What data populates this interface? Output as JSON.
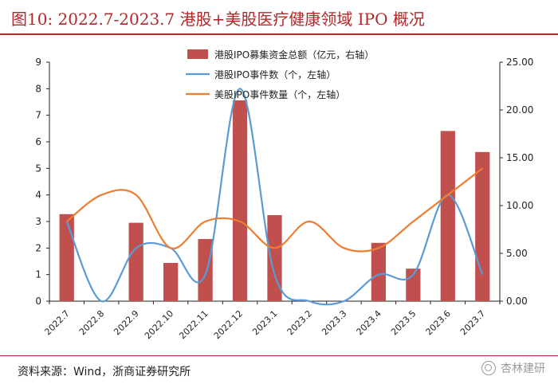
{
  "header": {
    "title": "图10:   2022.7-2023.7 港股+美股医疗健康领域 IPO 概况"
  },
  "footer": {
    "source": "资料来源：Wind，浙商证券研究所",
    "watermark": "杏林建研"
  },
  "colors": {
    "title": "#b0282a",
    "bar": "#c0504d",
    "hk_line": "#5b9bd5",
    "us_line": "#ed7d31"
  },
  "chart_data": {
    "type": "bar",
    "categories": [
      "2022.7",
      "2022.8",
      "2022.9",
      "2022.10",
      "2022.11",
      "2022.12",
      "2023.1",
      "2023.2",
      "2023.3",
      "2023.4",
      "2023.5",
      "2023.6",
      "2023.7"
    ],
    "y_left": {
      "ylim": [
        0,
        9
      ],
      "ticks": [
        "0",
        "1",
        "2",
        "3",
        "4",
        "5",
        "6",
        "7",
        "8",
        "9"
      ]
    },
    "y_right": {
      "ylim": [
        0,
        25
      ],
      "ticks": [
        "0.00",
        "5.00",
        "10.00",
        "15.00",
        "20.00",
        "25.00"
      ]
    },
    "series": [
      {
        "name": "港股IPO募集资金总额（亿元，右轴）",
        "type": "bar",
        "axis": "right",
        "values": [
          9.1,
          0,
          8.2,
          4.0,
          6.5,
          21.0,
          9.0,
          0,
          0,
          6.1,
          3.4,
          17.8,
          15.6
        ]
      },
      {
        "name": "港股IPO事件数（个，左轴）",
        "type": "line",
        "axis": "left",
        "values": [
          3,
          0,
          2,
          2,
          1,
          8,
          1,
          0,
          0,
          1,
          1,
          4,
          1
        ]
      },
      {
        "name": "美股IPO事件数量（个，左轴）",
        "type": "line",
        "axis": "left",
        "values": [
          3,
          4,
          4,
          2,
          3,
          3,
          2,
          3,
          2,
          2,
          3,
          4,
          5
        ]
      }
    ],
    "legend": "top-right",
    "grid": false
  }
}
